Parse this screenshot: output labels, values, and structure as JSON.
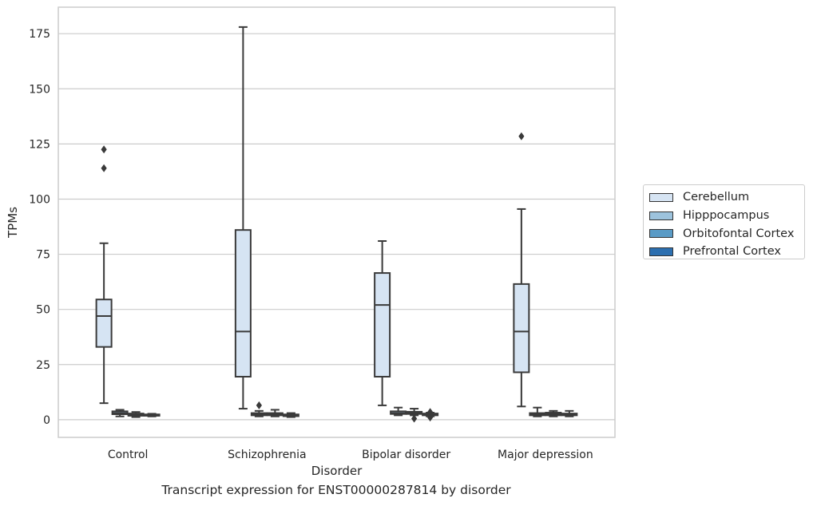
{
  "chart_data": {
    "type": "box",
    "caption": "Transcript expression for ENST00000287814 by disorder",
    "xlabel": "Disorder",
    "ylabel": "TPMs",
    "ylim": [
      -8,
      187
    ],
    "yticks": [
      0,
      25,
      50,
      75,
      100,
      125,
      150,
      175
    ],
    "grid": "horizontal",
    "legend_position": "right",
    "categories": [
      "Control",
      "Schizophrenia",
      "Bipolar disorder",
      "Major depression"
    ],
    "series": [
      {
        "name": "Cerebellum",
        "color": "#d6e4f3",
        "boxes": [
          {
            "whisker_low": 7.5,
            "q1": 33,
            "median": 47,
            "q3": 54.5,
            "whisker_high": 80,
            "outliers": [
              114,
              122.5
            ]
          },
          {
            "whisker_low": 5,
            "q1": 19.5,
            "median": 40,
            "q3": 86,
            "whisker_high": 178,
            "outliers": []
          },
          {
            "whisker_low": 6.5,
            "q1": 19.5,
            "median": 52,
            "q3": 66.5,
            "whisker_high": 81,
            "outliers": []
          },
          {
            "whisker_low": 6,
            "q1": 21.5,
            "median": 40,
            "q3": 61.5,
            "whisker_high": 95.5,
            "outliers": [
              128.5
            ]
          }
        ]
      },
      {
        "name": "Hipppocampus",
        "color": "#9dc3dd",
        "boxes": [
          {
            "whisker_low": 1.5,
            "q1": 2.5,
            "median": 3,
            "q3": 3.8,
            "whisker_high": 4.5,
            "outliers": []
          },
          {
            "whisker_low": 1.5,
            "q1": 2.0,
            "median": 2.3,
            "q3": 3.0,
            "whisker_high": 4.0,
            "outliers": [
              6.5
            ]
          },
          {
            "whisker_low": 2.0,
            "q1": 2.6,
            "median": 3,
            "q3": 3.8,
            "whisker_high": 5.5,
            "outliers": []
          },
          {
            "whisker_low": 1.5,
            "q1": 2.0,
            "median": 2.4,
            "q3": 3.0,
            "whisker_high": 5.5,
            "outliers": []
          }
        ]
      },
      {
        "name": "Orbitofontal Cortex",
        "color": "#5a9bc6",
        "boxes": [
          {
            "whisker_low": 1.2,
            "q1": 1.8,
            "median": 2.2,
            "q3": 2.8,
            "whisker_high": 3.5,
            "outliers": []
          },
          {
            "whisker_low": 1.5,
            "q1": 2.0,
            "median": 2.5,
            "q3": 3.0,
            "whisker_high": 4.5,
            "outliers": []
          },
          {
            "whisker_low": 2.0,
            "q1": 2.6,
            "median": 3,
            "q3": 3.6,
            "whisker_high": 5.0,
            "outliers": [
              0.5
            ]
          },
          {
            "whisker_low": 1.5,
            "q1": 2.0,
            "median": 2.5,
            "q3": 3.2,
            "whisker_high": 4.0,
            "outliers": []
          }
        ]
      },
      {
        "name": "Prefrontal Cortex",
        "color": "#2c6fb0",
        "boxes": [
          {
            "whisker_low": 1.5,
            "q1": 1.8,
            "median": 2.1,
            "q3": 2.4,
            "whisker_high": 2.7,
            "outliers": []
          },
          {
            "whisker_low": 1.2,
            "q1": 1.6,
            "median": 2.0,
            "q3": 2.4,
            "whisker_high": 3.0,
            "outliers": []
          },
          {
            "whisker_low": 1.5,
            "q1": 2.0,
            "median": 2.4,
            "q3": 2.8,
            "whisker_high": 3.2,
            "outliers": [
              1.0,
              3.5
            ]
          },
          {
            "whisker_low": 1.5,
            "q1": 2.0,
            "median": 2.4,
            "q3": 2.8,
            "whisker_high": 4.0,
            "outliers": []
          }
        ]
      }
    ]
  }
}
